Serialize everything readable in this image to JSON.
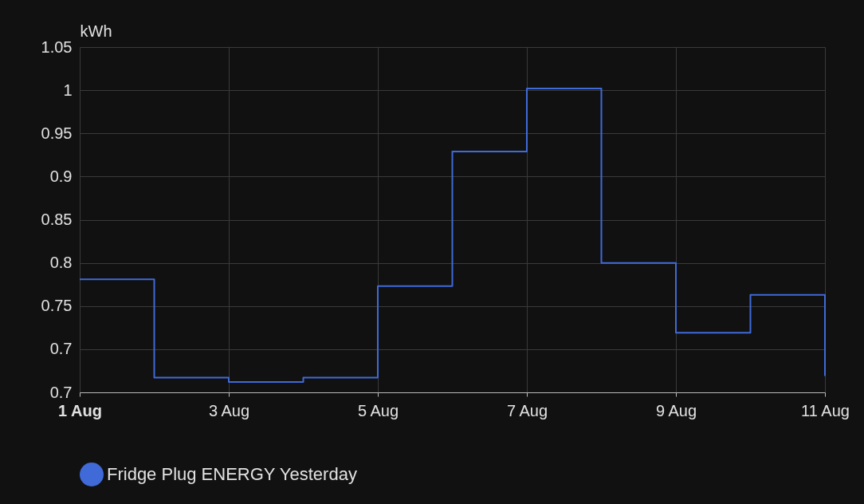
{
  "chart_data": {
    "type": "step",
    "ylabel": "kWh",
    "x": [
      "--08-01",
      "--08-02",
      "--08-03",
      "--08-04",
      "--08-05",
      "--08-06",
      "--08-07",
      "--08-08",
      "--08-09",
      "--08-10",
      "--08-11"
    ],
    "series": [
      {
        "name": "Fridge Plug ENERGY Yesterday",
        "color": "#3f6ad8",
        "values": [
          0.781,
          0.667,
          0.662,
          0.667,
          0.773,
          0.929,
          1.002,
          0.8,
          0.719,
          0.763,
          0.669
        ]
      }
    ],
    "xlim": [
      "--08-01",
      "--08-11"
    ],
    "xticks": [
      {
        "value": "--08-01",
        "label": "1 Aug"
      },
      {
        "value": "--08-03",
        "label": "3 Aug"
      },
      {
        "value": "--08-05",
        "label": "5 Aug"
      },
      {
        "value": "--08-07",
        "label": "7 Aug"
      },
      {
        "value": "--08-09",
        "label": "9 Aug"
      },
      {
        "value": "--08-11",
        "label": "11 Aug"
      }
    ],
    "ylim": [
      0.65,
      1.05
    ],
    "yticks": [
      {
        "value": 0.65,
        "label": "0.7"
      },
      0.7,
      0.75,
      0.8,
      0.85,
      0.9,
      0.95,
      1,
      1.05
    ],
    "grid": true,
    "legend": "bottom"
  }
}
